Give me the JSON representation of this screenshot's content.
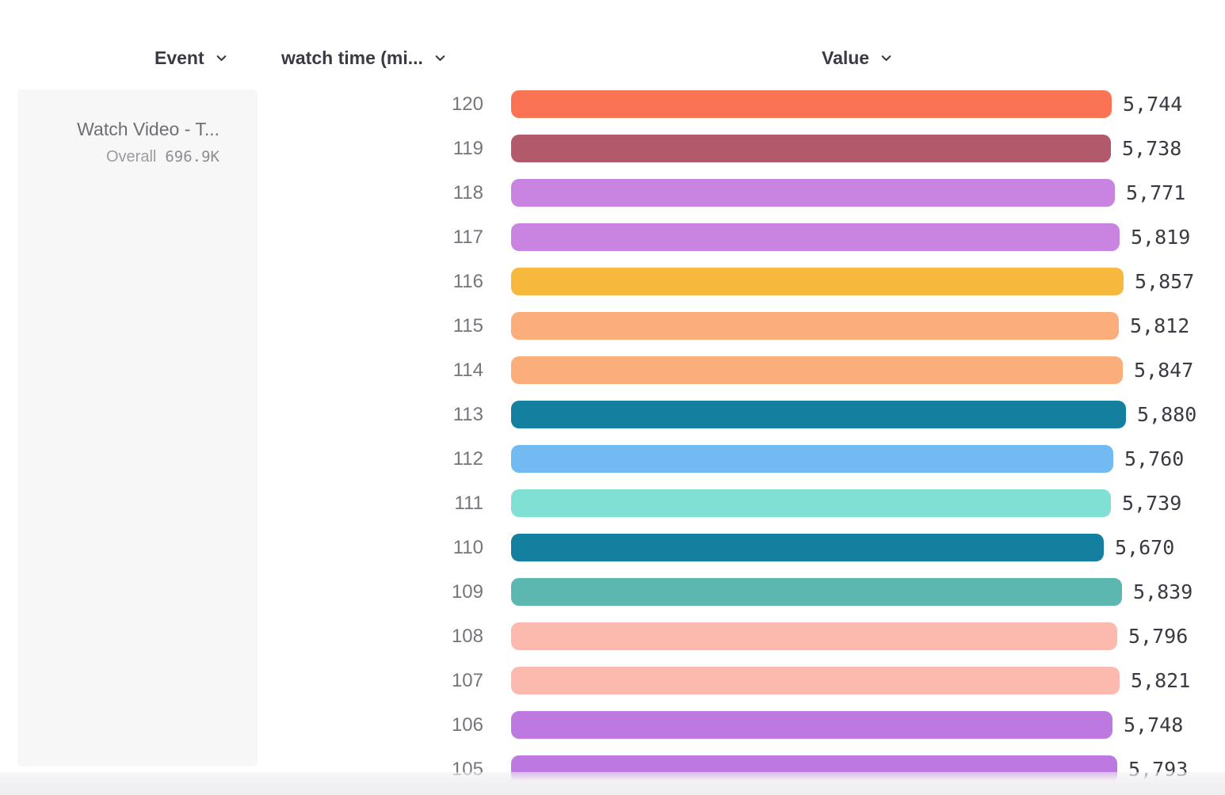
{
  "header": {
    "event_column_label": "Event",
    "measure_column_label": "watch time (mi...",
    "value_column_label": "Value"
  },
  "sidebar": {
    "event_name": "Watch Video - T...",
    "overall_label": "Overall",
    "overall_value": "696.9K"
  },
  "colors": {
    "header_text": "#3A3A44",
    "row_label_text": "#75757D",
    "value_text": "#3A3A44",
    "panel_background": "#F7F7F7"
  },
  "chart_data": {
    "type": "bar",
    "orientation": "horizontal",
    "title": "",
    "xlabel": "Value",
    "ylabel": "watch time (mi...",
    "event": "Watch Video - T...",
    "overall": "696.9K",
    "grid": false,
    "legend": false,
    "xlim": [
      0,
      5880
    ],
    "categories": [
      "120",
      "119",
      "118",
      "117",
      "116",
      "115",
      "114",
      "113",
      "112",
      "111",
      "110",
      "109",
      "108",
      "107",
      "106",
      "105"
    ],
    "values": [
      5744,
      5738,
      5771,
      5819,
      5857,
      5812,
      5847,
      5880,
      5760,
      5739,
      5670,
      5839,
      5796,
      5821,
      5748,
      5793
    ],
    "value_labels": [
      "5,744",
      "5,738",
      "5,771",
      "5,819",
      "5,857",
      "5,812",
      "5,847",
      "5,880",
      "5,760",
      "5,739",
      "5,670",
      "5,839",
      "5,796",
      "5,821",
      "5,748",
      "5,793"
    ],
    "bar_colors": [
      "#FB7355",
      "#B25A6C",
      "#C983E1",
      "#C983E1",
      "#F6B83D",
      "#FBAE7C",
      "#FBAE7C",
      "#157F9F",
      "#71BAF2",
      "#80E0D3",
      "#157F9F",
      "#5BB7B0",
      "#FCB9AE",
      "#FCB9AE",
      "#BD79DF",
      "#BD79DF"
    ]
  }
}
